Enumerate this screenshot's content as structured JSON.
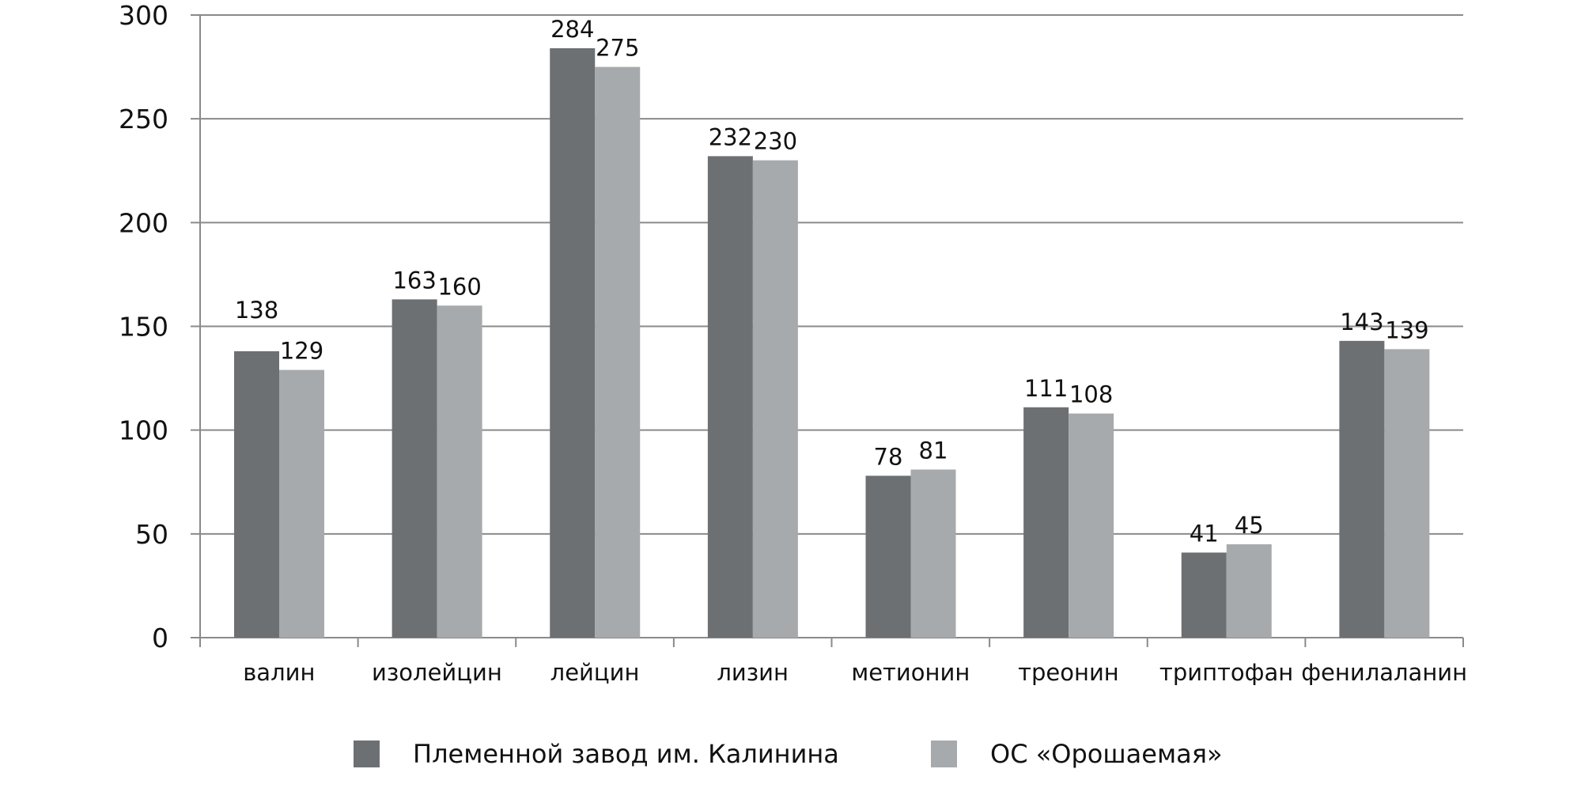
{
  "chart_data": {
    "type": "bar",
    "title": "",
    "xlabel": "",
    "ylabel": "",
    "ylim": [
      0,
      300
    ],
    "yticks": [
      0,
      50,
      100,
      150,
      200,
      250,
      300
    ],
    "grid": true,
    "legend_position": "bottom",
    "categories": [
      "валин",
      "изолейцин",
      "лейцин",
      "лизин",
      "метионин",
      "треонин",
      "триптофан",
      "фенилаланин"
    ],
    "series": [
      {
        "name": "Племенной завод им. Калинина",
        "color": "#6d7073",
        "values": [
          138,
          163,
          284,
          232,
          78,
          111,
          41,
          143
        ]
      },
      {
        "name": "ОС «Орошаемая»",
        "color": "#a7aaac",
        "values": [
          129,
          160,
          275,
          230,
          81,
          108,
          45,
          139
        ]
      }
    ]
  }
}
